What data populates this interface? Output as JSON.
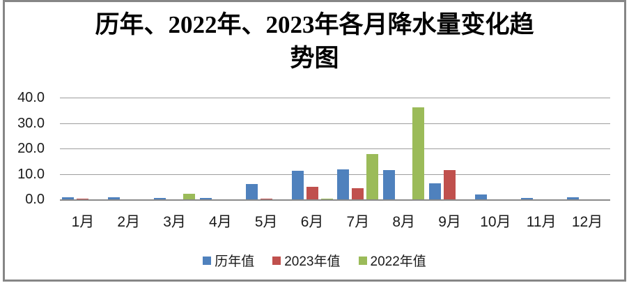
{
  "window": {
    "frame_color": "#868686",
    "background_color": "#ffffff"
  },
  "title": {
    "line1": "历年、2022年、2023年各月降水量变化趋",
    "line2": "势图"
  },
  "chart_data": {
    "type": "bar",
    "title": "历年、2022年、2023年各月降水量变化趋势图",
    "categories": [
      "1月",
      "2月",
      "3月",
      "4月",
      "5月",
      "6月",
      "7月",
      "8月",
      "9月",
      "10月",
      "11月",
      "12月"
    ],
    "series": [
      {
        "name": "历年值",
        "color": "#4F81BD",
        "values": [
          0.9,
          0.9,
          0.5,
          0.6,
          6.0,
          11.2,
          11.8,
          11.4,
          6.4,
          1.8,
          0.5,
          0.9
        ]
      },
      {
        "name": "2023年值",
        "color": "#C0504D",
        "values": [
          0.3,
          0.0,
          0.0,
          0.0,
          0.4,
          5.0,
          4.4,
          0.0,
          11.6,
          0.0,
          0.0,
          0.0
        ]
      },
      {
        "name": "2022年值",
        "color": "#9BBB59",
        "values": [
          0.0,
          0.0,
          2.3,
          0.0,
          0.0,
          0.4,
          17.9,
          36.1,
          0.0,
          0.0,
          0.0,
          0.0
        ]
      }
    ],
    "xlabel": "",
    "ylabel": "",
    "ylim": [
      0,
      40
    ],
    "yticks": [
      {
        "value": 40,
        "label": "40.0"
      },
      {
        "value": 30,
        "label": "30.0"
      },
      {
        "value": 20,
        "label": "20.0"
      },
      {
        "value": 10,
        "label": "10.0"
      },
      {
        "value": 0,
        "label": "0.0"
      }
    ],
    "grid": "horizontal",
    "gridline_color": "#9d9d9d",
    "axis_line_color": "#8a8a8a",
    "legend_position": "bottom"
  }
}
